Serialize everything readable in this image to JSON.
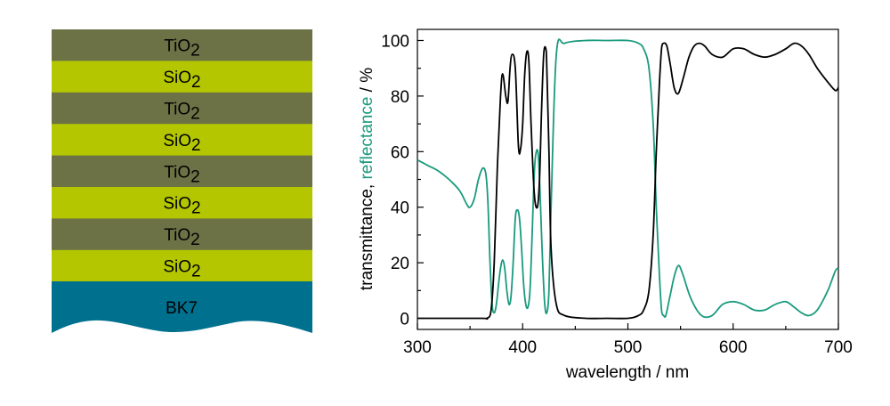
{
  "colors": {
    "tio2": "#6c7246",
    "sio2": "#b3c600",
    "substrate": "#00708f",
    "transmittance": "#000000",
    "reflectance": "#1a9a7e",
    "axis": "#000000"
  },
  "layer_stack": {
    "layers": [
      {
        "material": "TiO",
        "subscript": "2",
        "color_key": "tio2"
      },
      {
        "material": "SiO",
        "subscript": "2",
        "color_key": "sio2"
      },
      {
        "material": "TiO",
        "subscript": "2",
        "color_key": "tio2"
      },
      {
        "material": "SiO",
        "subscript": "2",
        "color_key": "sio2"
      },
      {
        "material": "TiO",
        "subscript": "2",
        "color_key": "tio2"
      },
      {
        "material": "SiO",
        "subscript": "2",
        "color_key": "sio2"
      },
      {
        "material": "TiO",
        "subscript": "2",
        "color_key": "tio2"
      },
      {
        "material": "SiO",
        "subscript": "2",
        "color_key": "sio2"
      }
    ],
    "substrate": "BK7"
  },
  "chart_data": {
    "type": "line",
    "xlabel": "wavelength / nm",
    "ylabel_parts": [
      {
        "text": "transmittance, ",
        "color_key": "transmittance"
      },
      {
        "text": "reflectance",
        "color_key": "reflectance"
      },
      {
        "text": "  / %",
        "color_key": "transmittance"
      }
    ],
    "xlim": [
      300,
      700
    ],
    "ylim": [
      -4,
      104
    ],
    "xticks": [
      300,
      400,
      500,
      600,
      700
    ],
    "yticks": [
      0,
      20,
      40,
      60,
      80,
      100
    ],
    "grid": false,
    "series": [
      {
        "color_key": "transmittance",
        "x": [
          300,
          360,
          366,
          370,
          373,
          376,
          379,
          381,
          384,
          386,
          388,
          390,
          393,
          396,
          398,
          400,
          402,
          404,
          406,
          408,
          411,
          414,
          416,
          418,
          420,
          422,
          423,
          425,
          427,
          432,
          440,
          460,
          480,
          500,
          510,
          515,
          520,
          524,
          527,
          530,
          532,
          534,
          537,
          540,
          544,
          548,
          553,
          558,
          563,
          568,
          573,
          580,
          590,
          600,
          610,
          620,
          630,
          640,
          650,
          658,
          665,
          672,
          680,
          690,
          697,
          700
        ],
        "y": [
          0,
          0,
          0,
          3,
          20,
          55,
          80,
          88,
          80,
          78,
          90,
          95,
          90,
          62,
          61,
          70,
          88,
          96,
          92,
          70,
          45,
          40,
          50,
          75,
          95,
          97,
          90,
          60,
          25,
          5,
          1,
          0,
          0,
          0,
          1,
          3,
          10,
          30,
          60,
          85,
          97,
          99,
          98,
          92,
          83,
          81,
          87,
          94,
          98,
          99,
          98,
          95,
          94,
          97,
          97,
          95,
          94,
          95,
          97,
          99,
          98,
          95,
          90,
          85,
          82,
          83
        ]
      },
      {
        "color_key": "reflectance",
        "x": [
          300,
          310,
          320,
          330,
          340,
          347,
          350,
          354,
          358,
          362,
          365,
          367,
          369,
          371,
          373,
          375,
          377,
          379,
          381,
          383,
          385,
          387,
          389,
          391,
          393,
          395,
          397,
          399,
          401,
          403,
          405,
          407,
          409,
          411,
          413,
          415,
          417,
          419,
          421,
          423,
          425,
          427,
          432,
          440,
          460,
          480,
          500,
          510,
          515,
          520,
          524,
          527,
          530,
          532,
          534,
          536,
          540,
          544,
          548,
          552,
          560,
          570,
          580,
          590,
          600,
          610,
          620,
          630,
          640,
          650,
          658,
          665,
          672,
          680,
          690,
          697,
          700
        ],
        "y": [
          57,
          55,
          53,
          50,
          46,
          41,
          40,
          43,
          50,
          54,
          52,
          42,
          20,
          5,
          2,
          5,
          12,
          18,
          21,
          18,
          10,
          5,
          8,
          20,
          36,
          39,
          36,
          25,
          12,
          5,
          4,
          10,
          30,
          52,
          60,
          58,
          40,
          20,
          5,
          2,
          10,
          40,
          95,
          99,
          100,
          100,
          100,
          99,
          97,
          90,
          70,
          40,
          15,
          3,
          1,
          1,
          8,
          15,
          19,
          16,
          7,
          1,
          1,
          5,
          6,
          5,
          3,
          3,
          5,
          6,
          4,
          2,
          1,
          3,
          10,
          17,
          18
        ]
      }
    ]
  }
}
